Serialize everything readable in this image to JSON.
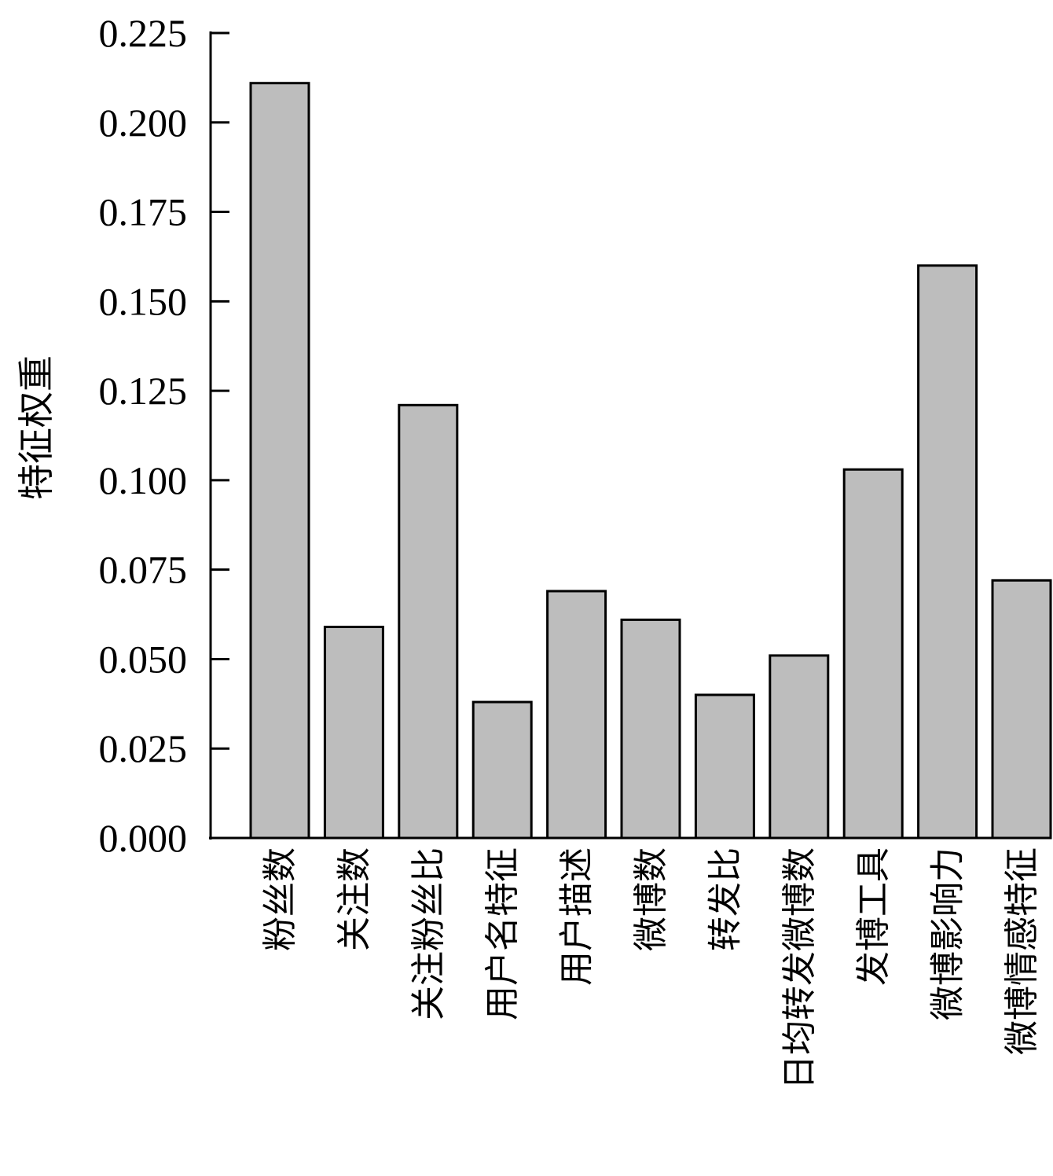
{
  "chart_data": {
    "type": "bar",
    "title": "",
    "xlabel": "",
    "ylabel": "特征权重",
    "ylim": [
      0,
      0.225
    ],
    "yticks": [
      0.0,
      0.025,
      0.05,
      0.075,
      0.1,
      0.125,
      0.15,
      0.175,
      0.2,
      0.225
    ],
    "ytick_labels": [
      "0.000",
      "0.025",
      "0.050",
      "0.075",
      "0.100",
      "0.125",
      "0.150",
      "0.175",
      "0.200",
      "0.225"
    ],
    "categories": [
      "粉丝数",
      "关注数",
      "关注粉丝比",
      "用户名特征",
      "用户描述",
      "微博数",
      "转发比",
      "日均转发微博数",
      "发博工具",
      "微博影响力",
      "微博情感特征"
    ],
    "values": [
      0.211,
      0.059,
      0.121,
      0.038,
      0.069,
      0.061,
      0.04,
      0.051,
      0.103,
      0.16,
      0.072
    ],
    "grid": false,
    "legend": "none",
    "bar_color": "#bdbdbd",
    "edge_color": "#000000"
  }
}
